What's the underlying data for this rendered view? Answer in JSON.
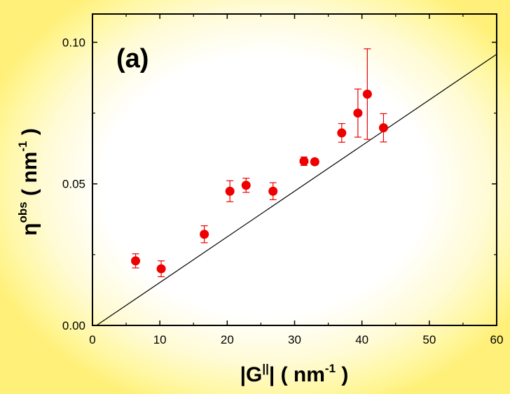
{
  "chart_data": {
    "type": "scatter",
    "panel_label": "(a)",
    "xlabel": {
      "prefix": "|G",
      "superscript": "||",
      "suffix": "|  ( nm",
      "unit_exp": "-1",
      "close": " )"
    },
    "ylabel": {
      "symbol": "η",
      "superscript": "obs",
      "mid": "  ( nm",
      "unit_exp": "-1",
      "close": " )"
    },
    "xlim": [
      0,
      60
    ],
    "ylim": [
      0.0,
      0.11
    ],
    "xticks": [
      0,
      10,
      20,
      30,
      40,
      50,
      60
    ],
    "xtick_labels": [
      "0",
      "10",
      "20",
      "30",
      "40",
      "50",
      "60"
    ],
    "yticks": [
      0.0,
      0.05,
      0.1
    ],
    "ytick_labels": [
      "0.00",
      "0.05",
      "0.10"
    ],
    "marker_color": "#ee0000",
    "line_color": "#000000",
    "points": [
      {
        "x": 6.4,
        "y": 0.0228,
        "err": 0.0025
      },
      {
        "x": 10.2,
        "y": 0.02,
        "err": 0.0028
      },
      {
        "x": 16.6,
        "y": 0.0322,
        "err": 0.003
      },
      {
        "x": 20.4,
        "y": 0.0474,
        "err": 0.0037
      },
      {
        "x": 22.8,
        "y": 0.0495,
        "err": 0.0025
      },
      {
        "x": 26.8,
        "y": 0.0474,
        "err": 0.003
      },
      {
        "x": 31.4,
        "y": 0.058,
        "err": 0.0015
      },
      {
        "x": 33.0,
        "y": 0.0578,
        "err": 0.001
      },
      {
        "x": 37.0,
        "y": 0.068,
        "err": 0.0033
      },
      {
        "x": 39.4,
        "y": 0.075,
        "err": 0.0085
      },
      {
        "x": 40.8,
        "y": 0.0817,
        "err": 0.016
      },
      {
        "x": 43.2,
        "y": 0.0698,
        "err": 0.005
      }
    ],
    "fit_line": {
      "x": [
        0.6,
        60
      ],
      "y": [
        0.0,
        0.0958
      ]
    }
  }
}
